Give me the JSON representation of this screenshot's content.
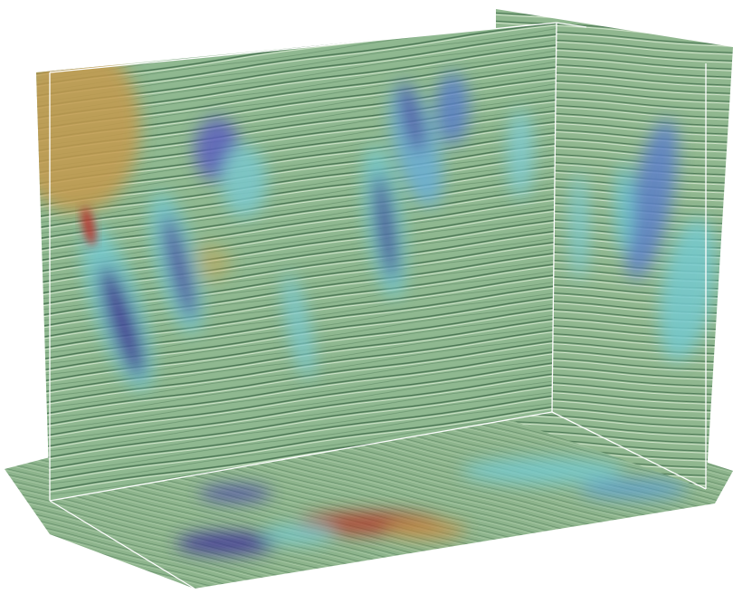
{
  "scene": {
    "subject": "seismic-volume-3d",
    "colors": {
      "background": "#ffffff",
      "base_green": "#8fb890",
      "light_green": "#a9cba6",
      "dark_green": "#5f8c66",
      "cyan": "#74c9cf",
      "blue": "#5c7fc8",
      "purple": "#4a3fa2",
      "deep_purple": "#332a86",
      "orange": "#c49a4e",
      "red": "#b8322a",
      "wireframe": "#ffffff"
    }
  }
}
